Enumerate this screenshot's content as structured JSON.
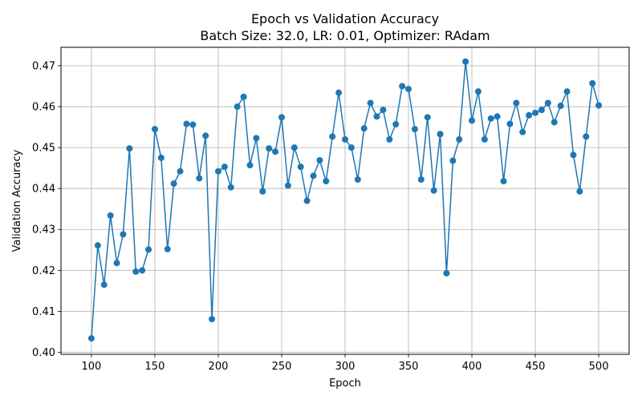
{
  "chart_data": {
    "type": "line",
    "title": "Epoch vs Validation Accuracy",
    "subtitle": "Batch Size: 32.0, LR: 0.01, Optimizer: RAdam",
    "xlabel": "Epoch",
    "ylabel": "Validation Accuracy",
    "xlim": [
      76,
      524
    ],
    "ylim": [
      0.3995,
      0.4745
    ],
    "xticks": [
      100,
      150,
      200,
      250,
      300,
      350,
      400,
      450,
      500
    ],
    "yticks": [
      0.4,
      0.41,
      0.42,
      0.43,
      0.44,
      0.45,
      0.46,
      0.47
    ],
    "ytick_labels": [
      "0.40",
      "0.41",
      "0.42",
      "0.43",
      "0.44",
      "0.45",
      "0.46",
      "0.47"
    ],
    "grid": true,
    "series": [
      {
        "color": "#1f77b4",
        "marker": "circle",
        "x": [
          100,
          105,
          110,
          115,
          120,
          125,
          130,
          135,
          140,
          145,
          150,
          155,
          160,
          165,
          170,
          175,
          180,
          185,
          190,
          195,
          200,
          205,
          210,
          215,
          220,
          225,
          230,
          235,
          240,
          245,
          250,
          255,
          260,
          265,
          270,
          275,
          280,
          285,
          290,
          295,
          300,
          305,
          310,
          315,
          320,
          325,
          330,
          335,
          340,
          345,
          350,
          355,
          360,
          365,
          370,
          375,
          380,
          385,
          390,
          395,
          400,
          405,
          410,
          415,
          420,
          425,
          430,
          435,
          440,
          445,
          450,
          455,
          460,
          465,
          470,
          475,
          480,
          485,
          490,
          495,
          500
        ],
        "y": [
          0.4034,
          0.4261,
          0.4165,
          0.4334,
          0.4218,
          0.4288,
          0.4498,
          0.4197,
          0.42,
          0.4251,
          0.4545,
          0.4475,
          0.4252,
          0.4412,
          0.4442,
          0.4558,
          0.4556,
          0.4425,
          0.4529,
          0.4081,
          0.4442,
          0.4453,
          0.4403,
          0.46,
          0.4624,
          0.4457,
          0.4523,
          0.4393,
          0.4498,
          0.449,
          0.4574,
          0.4407,
          0.45,
          0.4453,
          0.437,
          0.4431,
          0.4469,
          0.4418,
          0.4527,
          0.4634,
          0.452,
          0.45,
          0.4422,
          0.4547,
          0.4609,
          0.4576,
          0.4592,
          0.452,
          0.4557,
          0.465,
          0.4643,
          0.4545,
          0.4422,
          0.4574,
          0.4395,
          0.4533,
          0.4193,
          0.4468,
          0.452,
          0.471,
          0.4566,
          0.4637,
          0.452,
          0.4571,
          0.4576,
          0.4418,
          0.4558,
          0.4609,
          0.4538,
          0.4579,
          0.4585,
          0.4592,
          0.4609,
          0.4562,
          0.4602,
          0.4637,
          0.4482,
          0.4393,
          0.4527,
          0.4657,
          0.4603
        ]
      }
    ]
  }
}
